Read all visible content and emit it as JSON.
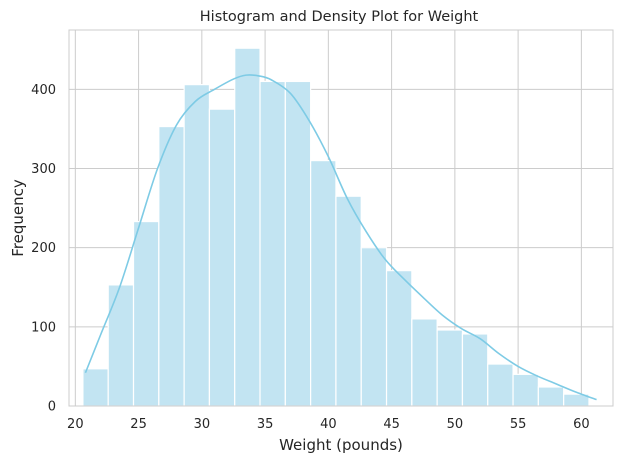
{
  "chart_data": {
    "type": "histogram",
    "title": "Histogram and Density Plot for Weight",
    "xlabel": "Weight (pounds)",
    "ylabel": "Frequency",
    "xlim": [
      19.5,
      62.5
    ],
    "ylim": [
      0,
      475
    ],
    "x_ticks": [
      20,
      25,
      30,
      35,
      40,
      45,
      50,
      55,
      60
    ],
    "y_ticks": [
      0,
      100,
      200,
      300,
      400
    ],
    "grid": true,
    "legend": "none",
    "bins": {
      "edges": [
        20.6,
        22.6,
        24.6,
        26.6,
        28.6,
        30.6,
        32.6,
        34.6,
        36.6,
        38.6,
        40.6,
        42.6,
        44.6,
        46.6,
        48.6,
        50.6,
        52.6,
        54.6,
        56.6,
        58.6,
        60.6,
        62.6
      ],
      "counts": [
        47,
        153,
        233,
        353,
        406,
        375,
        452,
        410,
        410,
        310,
        265,
        200,
        171,
        110,
        96,
        91,
        53,
        40,
        24,
        15,
        0
      ]
    },
    "density_curve": {
      "x": [
        20.8,
        22.0,
        23.5,
        25.0,
        26.5,
        28.0,
        29.5,
        31.0,
        32.5,
        33.5,
        34.5,
        35.5,
        37.0,
        38.5,
        40.0,
        41.5,
        43.0,
        44.5,
        46.0,
        47.5,
        49.0,
        50.5,
        52.0,
        53.5,
        55.0,
        56.5,
        58.0,
        59.5,
        61.2
      ],
      "y": [
        42,
        90,
        150,
        225,
        300,
        355,
        385,
        400,
        413,
        418,
        417,
        412,
        395,
        360,
        315,
        262,
        220,
        185,
        160,
        137,
        115,
        98,
        85,
        66,
        50,
        38,
        28,
        18,
        8
      ]
    },
    "colors": {
      "bar_fill": "#c2e4f2",
      "bar_edge": "#ffffff",
      "curve": "#7ecbe5",
      "grid": "#cccccc",
      "background": "#ffffff"
    }
  }
}
